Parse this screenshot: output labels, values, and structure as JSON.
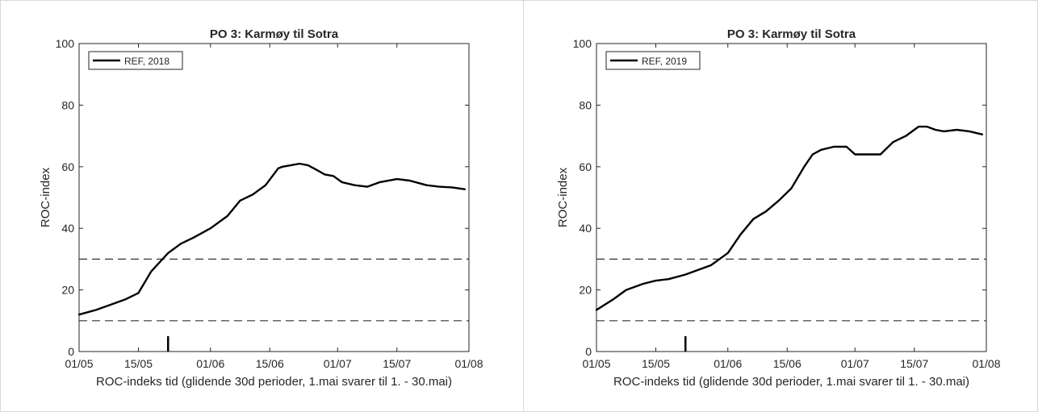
{
  "chart_data": [
    {
      "type": "line",
      "title": "PO 3: Karmøy til Sotra",
      "xlabel": "ROC-indeks tid (glidende 30d perioder, 1.mai svarer til 1. - 30.mai)",
      "ylabel": "ROC-index",
      "x_ticks": [
        "01/05",
        "15/05",
        "01/06",
        "15/06",
        "01/07",
        "15/07",
        "01/08"
      ],
      "y_ticks": [
        "0",
        "20",
        "40",
        "60",
        "80",
        "100"
      ],
      "xlim": [
        "01/05",
        "01/08"
      ],
      "ylim": [
        0,
        100
      ],
      "grid": false,
      "legend_position": "top-left",
      "series": [
        {
          "name": "REF, 2018",
          "color": "#000000",
          "x": [
            "01/05",
            "05/05",
            "08/05",
            "12/05",
            "15/05",
            "18/05",
            "22/05",
            "25/05",
            "28/05",
            "01/06",
            "05/06",
            "08/06",
            "11/06",
            "14/06",
            "17/06",
            "18/06",
            "20/06",
            "22/06",
            "24/06",
            "26/06",
            "28/06",
            "30/06",
            "02/07",
            "05/07",
            "08/07",
            "11/07",
            "15/07",
            "18/07",
            "22/07",
            "25/07",
            "28/07",
            "31/07"
          ],
          "values": [
            12,
            13.5,
            15,
            17,
            19,
            26,
            32,
            35,
            37,
            40,
            44,
            49,
            51,
            54,
            59.5,
            60,
            60.5,
            61,
            60.5,
            59,
            57.5,
            57,
            55,
            54,
            53.5,
            55,
            56,
            55.5,
            54,
            53.5,
            53.3,
            52.7
          ]
        },
        {
          "name": "REF, 2019",
          "color": "#000000",
          "x": [
            "01/05",
            "05/05",
            "08/05",
            "12/05",
            "15/05",
            "18/05",
            "22/05",
            "25/05",
            "28/05",
            "01/06",
            "04/06",
            "07/06",
            "10/06",
            "13/06",
            "16/06",
            "19/06",
            "21/06",
            "23/06",
            "26/06",
            "29/06",
            "01/07",
            "04/07",
            "07/07",
            "10/07",
            "13/07",
            "16/07",
            "18/07",
            "20/07",
            "22/07",
            "25/07",
            "28/07",
            "31/07"
          ],
          "values": [
            13.5,
            17,
            20,
            22,
            23,
            23.5,
            25,
            26.5,
            28,
            32,
            38,
            43,
            45.5,
            49,
            53,
            60,
            64,
            65.5,
            66.5,
            66.5,
            64,
            64,
            64,
            68,
            70,
            73,
            73,
            72,
            71.5,
            72,
            71.5,
            70.5
          ]
        }
      ],
      "reference_lines": [
        {
          "y": 30,
          "style": "dashed"
        },
        {
          "y": 10,
          "style": "dashed"
        }
      ],
      "marker": {
        "x": "22/05",
        "y": [
          0,
          5
        ]
      }
    }
  ]
}
